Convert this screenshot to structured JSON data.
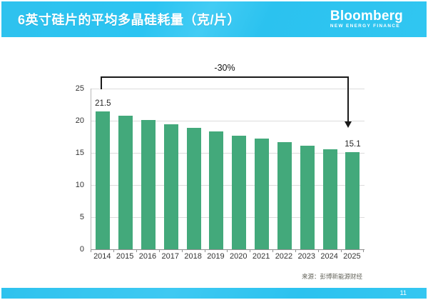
{
  "slide": {
    "title": "6英寸硅片的平均多晶硅耗量（克/片）",
    "logo": {
      "brand": "Bloomberg",
      "sub": "NEW ENERGY FINANCE"
    },
    "source": "来源：彭博新能源财经",
    "page_number": "11"
  },
  "colors": {
    "header_bg": "#2bc2ef",
    "footer_bg": "#2bc2ef",
    "bar": "#43a97b",
    "gridline": "#dcdcdc",
    "axis": "#8f8f8f",
    "annotation": "#1a1a1a",
    "title_text": "#ffffff"
  },
  "chart_data": {
    "type": "bar",
    "title": "6英寸硅片的平均多晶硅耗量（克/片）",
    "categories": [
      "2014",
      "2015",
      "2016",
      "2017",
      "2018",
      "2019",
      "2020",
      "2021",
      "2022",
      "2023",
      "2024",
      "2025"
    ],
    "values": [
      21.5,
      20.8,
      20.1,
      19.5,
      18.9,
      18.3,
      17.7,
      17.2,
      16.7,
      16.1,
      15.6,
      15.1
    ],
    "labeled_points": {
      "2014": "21.5",
      "2025": "15.1"
    },
    "annotation": "-30%",
    "xlabel": "",
    "ylabel": "",
    "ylim": [
      0,
      25
    ],
    "yticks": [
      0,
      5,
      10,
      15,
      20,
      25
    ],
    "grid": true,
    "legend": "none",
    "bar_color": "#43a97b",
    "source": "来源：彭博新能源财经"
  }
}
